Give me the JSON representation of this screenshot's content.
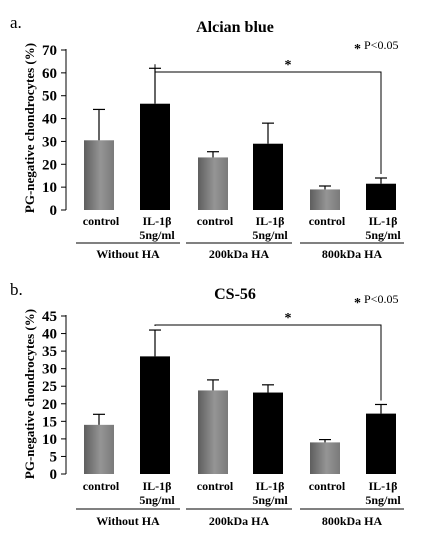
{
  "chart_data": [
    {
      "type": "bar",
      "panel_label": "a.",
      "title": "Alcian blue",
      "ylabel": "PG-negative chondrocytes (%)",
      "ylim": [
        0,
        70
      ],
      "yticks": [
        "0",
        "10",
        "20",
        "30",
        "40",
        "50",
        "60",
        "70"
      ],
      "categories": [
        {
          "line1": "control",
          "line2": ""
        },
        {
          "line1": "IL-1β",
          "line2": "5ng/ml"
        },
        {
          "line1": "control",
          "line2": ""
        },
        {
          "line1": "IL-1β",
          "line2": "5ng/ml"
        },
        {
          "line1": "control",
          "line2": ""
        },
        {
          "line1": "IL-1β",
          "line2": "5ng/ml"
        }
      ],
      "groups": [
        "Without HA",
        "200kDa HA",
        "800kDa HA"
      ],
      "values": [
        30.5,
        46.5,
        23,
        29,
        9,
        11.5
      ],
      "errors": [
        13.5,
        15.5,
        2.5,
        9,
        1.5,
        2.5
      ],
      "significance_note": "P<0.05",
      "significance_symbol": "*",
      "bar_colors": [
        "#858585",
        "#000000",
        "#858585",
        "#000000",
        "#858585",
        "#000000"
      ]
    },
    {
      "type": "bar",
      "panel_label": "b.",
      "title": "CS-56",
      "ylabel": "PG-negative chondrocytes (%)",
      "ylim": [
        0,
        45
      ],
      "yticks": [
        "0",
        "5",
        "10",
        "15",
        "20",
        "25",
        "30",
        "35",
        "40",
        "45"
      ],
      "categories": [
        {
          "line1": "control",
          "line2": ""
        },
        {
          "line1": "IL-1β",
          "line2": "5ng/ml"
        },
        {
          "line1": "control",
          "line2": ""
        },
        {
          "line1": "IL-1β",
          "line2": "5ng/ml"
        },
        {
          "line1": "control",
          "line2": ""
        },
        {
          "line1": "IL-1β",
          "line2": "5ng/ml"
        }
      ],
      "groups": [
        "Without HA",
        "200kDa HA",
        "800kDa HA"
      ],
      "values": [
        14,
        33.5,
        23.8,
        23.2,
        9,
        17.2
      ],
      "errors": [
        3,
        7.5,
        3,
        2.2,
        0.8,
        2.6
      ],
      "significance_note": "P<0.05",
      "significance_symbol": "*",
      "bar_colors": [
        "#858585",
        "#000000",
        "#858585",
        "#000000",
        "#858585",
        "#000000"
      ]
    }
  ]
}
